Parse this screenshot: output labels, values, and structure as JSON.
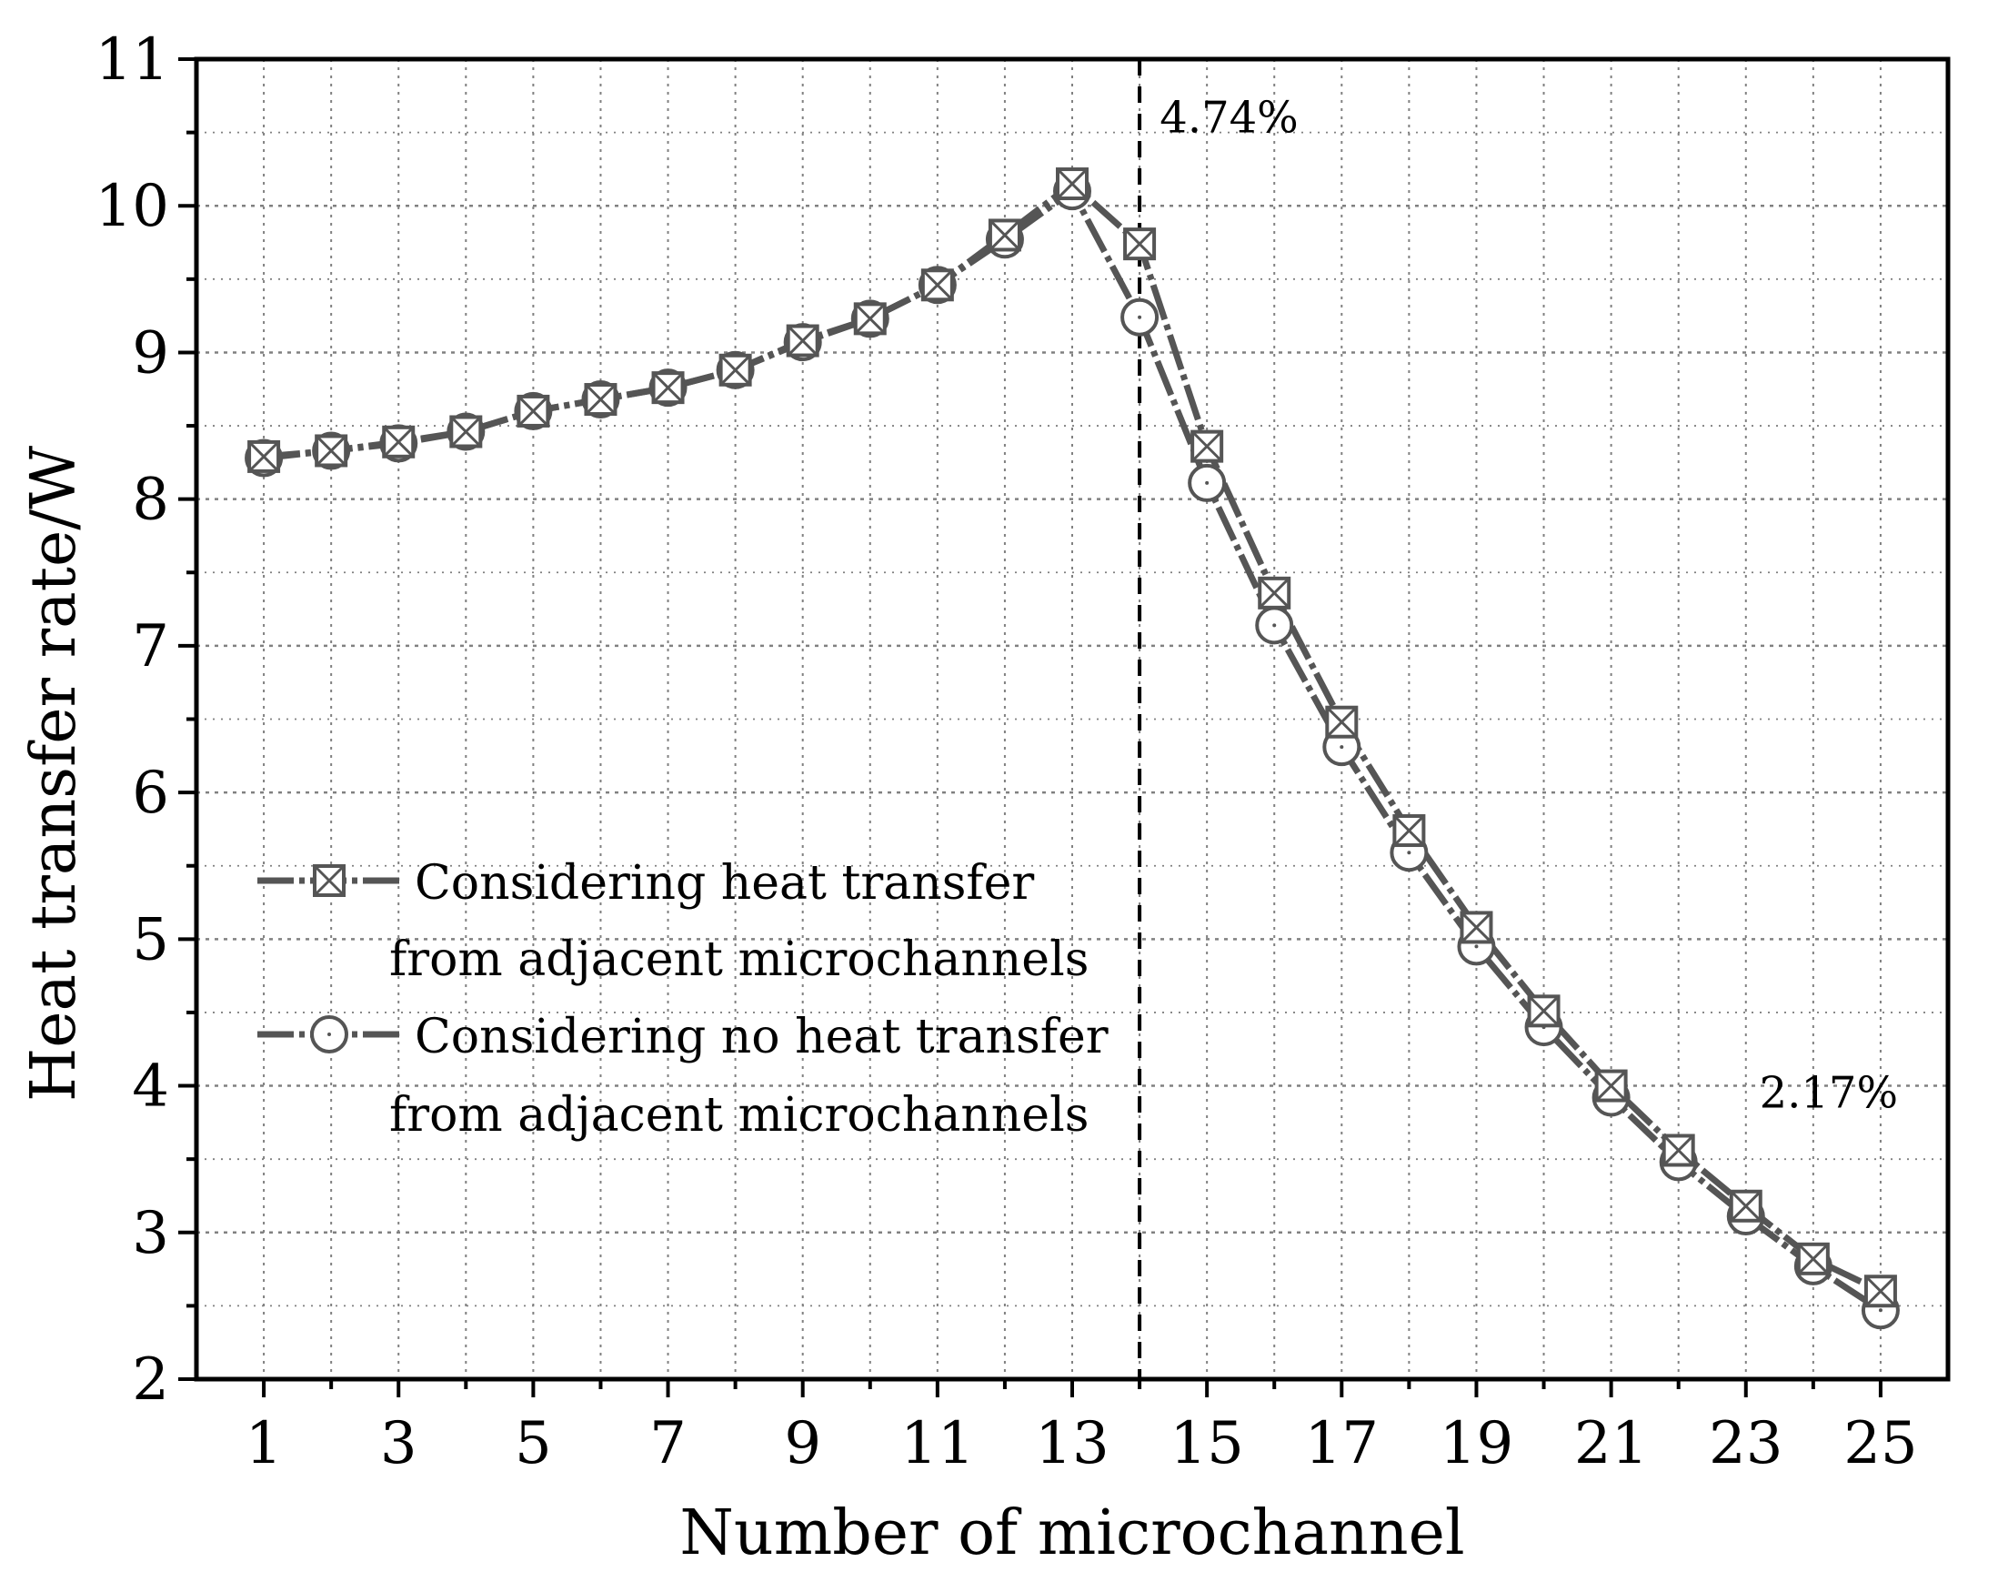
{
  "chart_data": {
    "type": "line",
    "xlabel": "Number of microchannel",
    "ylabel": "Heat transfer rate/W",
    "xlim": [
      0,
      26
    ],
    "ylim": [
      2,
      11
    ],
    "x_ticks": [
      1,
      3,
      5,
      7,
      9,
      11,
      13,
      15,
      17,
      19,
      21,
      23,
      25
    ],
    "y_ticks": [
      2,
      3,
      4,
      5,
      6,
      7,
      8,
      9,
      10,
      11
    ],
    "grid": true,
    "x": [
      1,
      2,
      3,
      4,
      5,
      6,
      7,
      8,
      9,
      10,
      11,
      12,
      13,
      14,
      15,
      16,
      17,
      18,
      19,
      20,
      21,
      22,
      23,
      24,
      25
    ],
    "series": [
      {
        "name": "Considering heat transfer from adjacent microchannels",
        "legend_line1": "Considering heat transfer",
        "legend_line2": "from adjacent microchannels",
        "marker": "square-x",
        "values": [
          8.29,
          8.33,
          8.39,
          8.46,
          8.6,
          8.68,
          8.76,
          8.88,
          9.08,
          9.23,
          9.46,
          9.8,
          10.15,
          9.74,
          8.36,
          7.36,
          6.48,
          5.74,
          5.08,
          4.51,
          4.0,
          3.56,
          3.18,
          2.82,
          2.6
        ]
      },
      {
        "name": "Considering no heat transfer from adjacent microchannels",
        "legend_line1": "Considering no heat transfer",
        "legend_line2": "from adjacent microchannels",
        "marker": "circle",
        "values": [
          8.28,
          8.33,
          8.38,
          8.46,
          8.6,
          8.68,
          8.76,
          8.88,
          9.07,
          9.23,
          9.46,
          9.77,
          10.1,
          9.24,
          8.11,
          7.14,
          6.31,
          5.59,
          4.95,
          4.4,
          3.92,
          3.48,
          3.11,
          2.77,
          2.47
        ]
      }
    ],
    "reference_line": {
      "x": 14,
      "style": "dashed"
    },
    "annotations": [
      {
        "text": "4.74%",
        "x": 14.3,
        "y": 10.5
      },
      {
        "text": "2.17%",
        "x": 23.2,
        "y": 3.85
      }
    ],
    "legend_position": "center-left",
    "colors": {
      "series": "#555555",
      "axis": "#000000",
      "grid": "#808080",
      "reference": "#000000"
    }
  }
}
